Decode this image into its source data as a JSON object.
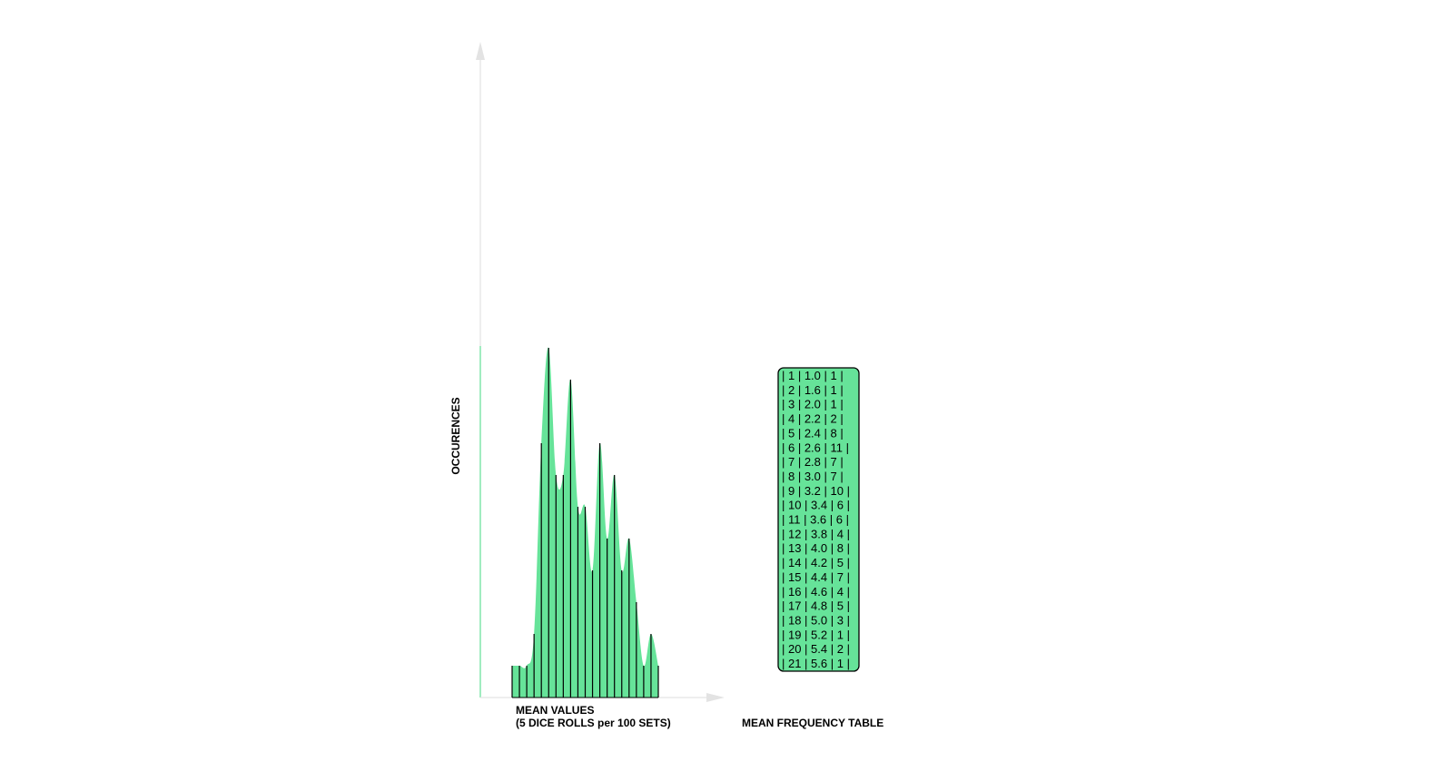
{
  "colors": {
    "fill": "#66e399",
    "bar_line": "#000000",
    "axis": "#e3e3e3",
    "y_axis_accent": "#66e399",
    "table_bg": "#66e399"
  },
  "chart_data": {
    "type": "area",
    "x": [
      1.0,
      1.6,
      2.0,
      2.2,
      2.4,
      2.6,
      2.8,
      3.0,
      3.2,
      3.4,
      3.6,
      3.8,
      4.0,
      4.2,
      4.4,
      4.6,
      4.8,
      5.0,
      5.2,
      5.4,
      5.6
    ],
    "values": [
      1,
      1,
      1,
      2,
      8,
      11,
      7,
      7,
      10,
      6,
      6,
      4,
      8,
      5,
      7,
      4,
      5,
      3,
      1,
      2,
      1
    ],
    "xlabel_line1": "MEAN VALUES",
    "xlabel_line2": "(5 DICE ROLLS per 100 SETS)",
    "ylabel": "OCCURENCES",
    "grid": false,
    "legend": "none"
  },
  "table": {
    "title": "MEAN FREQUENCY TABLE",
    "rows": [
      "| 1 | 1.0 | 1 |",
      "| 2 | 1.6 | 1 |",
      "| 3 | 2.0 | 1 |",
      "| 4 | 2.2 | 2 |",
      "| 5 | 2.4 | 8 |",
      "| 6 | 2.6 | 11 |",
      "| 7 | 2.8 | 7 |",
      "| 8 | 3.0 | 7 |",
      "| 9 | 3.2 | 10 |",
      "| 10 | 3.4 | 6 |",
      "| 11 | 3.6 | 6 |",
      "| 12 | 3.8 | 4 |",
      "| 13 | 4.0 | 8 |",
      "| 14 | 4.2 | 5 |",
      "| 15 | 4.4 | 7 |",
      "| 16 | 4.6 | 4 |",
      "| 17 | 4.8 | 5 |",
      "| 18 | 5.0 | 3 |",
      "| 19 | 5.2 | 1 |",
      "| 20 | 5.4 | 2 |",
      "| 21 | 5.6 | 1 |"
    ]
  }
}
